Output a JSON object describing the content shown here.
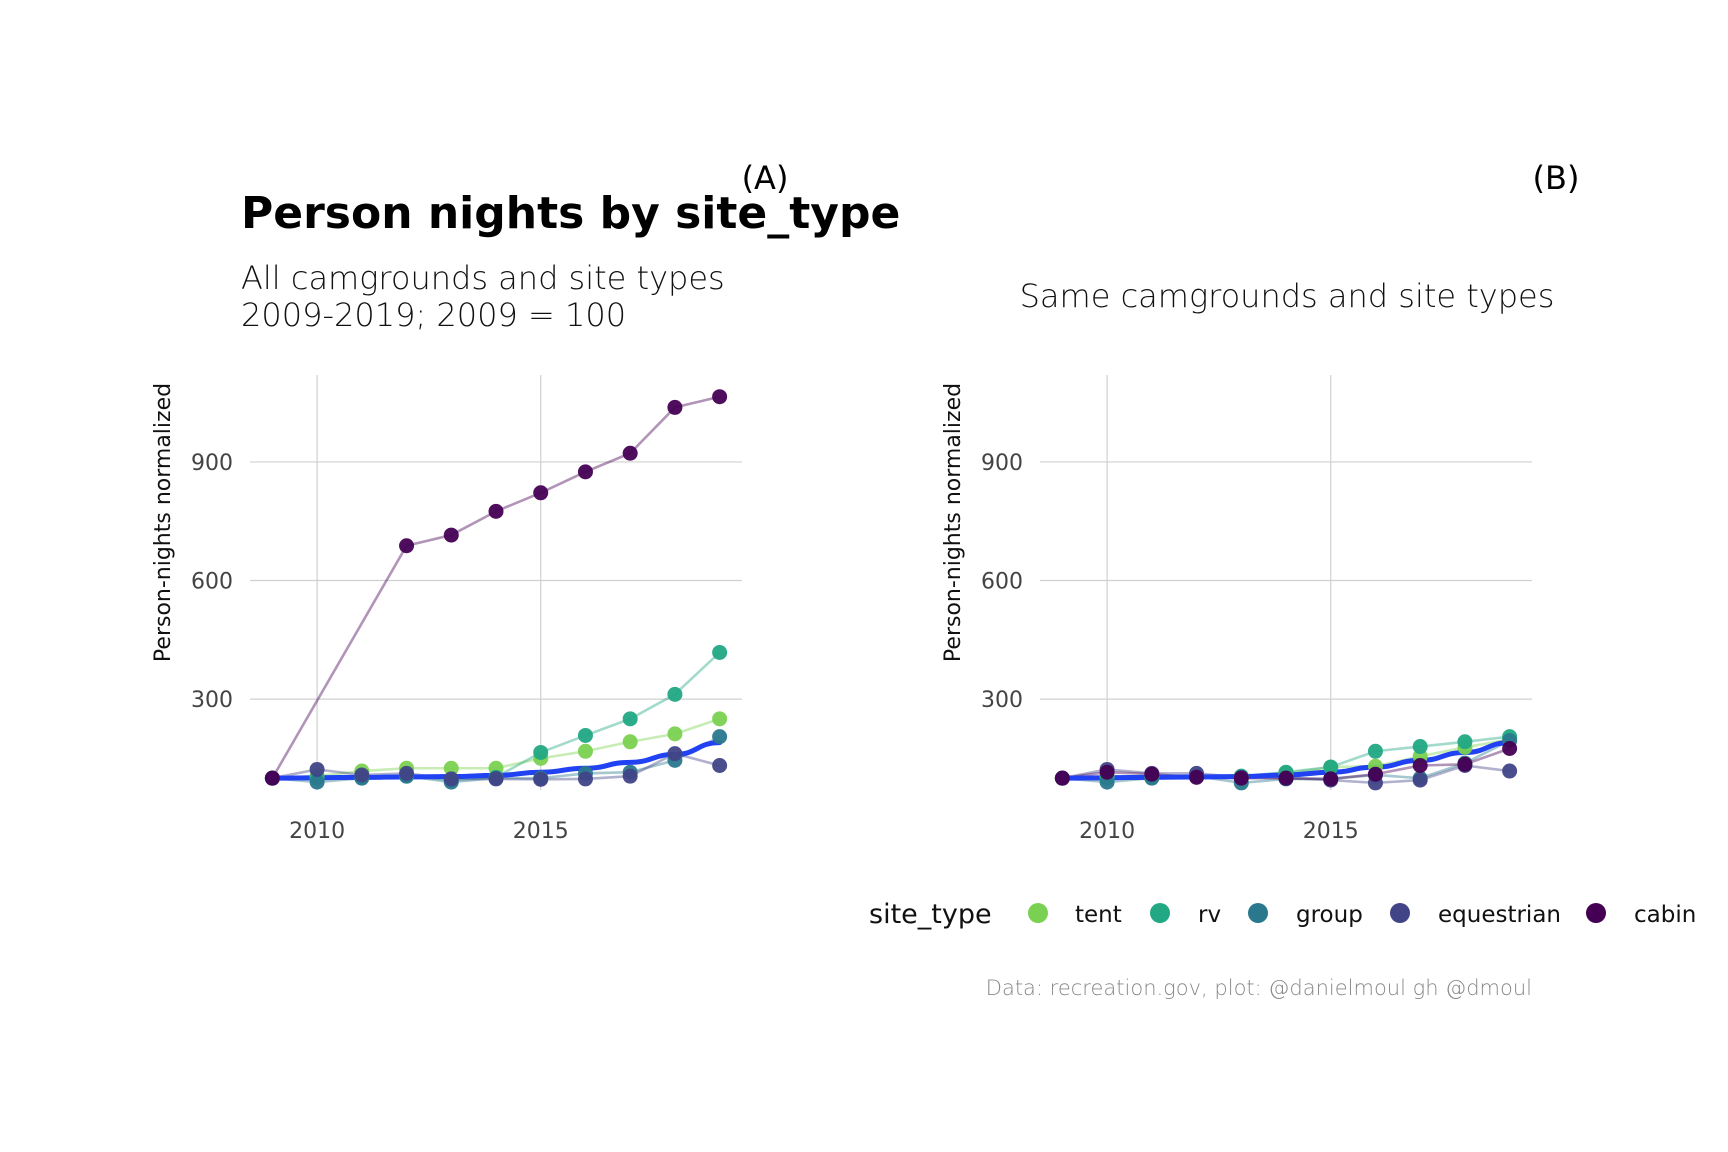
{
  "header": {
    "title": "Person nights by site_type",
    "subtitle_line1": "All camgrounds and site types",
    "subtitle_line2": "2009-2019; 2009 = 100"
  },
  "legend": {
    "title": "site_type",
    "items": [
      {
        "label": "tent",
        "color": "#7ad151"
      },
      {
        "label": "rv",
        "color": "#22a884"
      },
      {
        "label": "group",
        "color": "#2a788e"
      },
      {
        "label": "equestrian",
        "color": "#414487"
      },
      {
        "label": "cabin",
        "color": "#440154"
      }
    ]
  },
  "caption": "Data: recreation.gov, plot: @danielmoul gh @dmoul",
  "trend_color": "#2142f2",
  "chart_data": [
    {
      "type": "line",
      "tag": "(A)",
      "subtitle": "",
      "xlabel": "",
      "ylabel": "Person-nights normalized",
      "xlim": [
        2008.5,
        2019.5
      ],
      "ylim": [
        70,
        1120
      ],
      "xticks": [
        2010,
        2015
      ],
      "yticks": [
        300,
        600,
        900
      ],
      "grid": true,
      "x": [
        2009,
        2010,
        2011,
        2012,
        2013,
        2014,
        2015,
        2016,
        2017,
        2018,
        2019
      ],
      "series": [
        {
          "name": "tent",
          "color": "#7ad151",
          "values": [
            100,
            105,
            118,
            125,
            125,
            125,
            150,
            168,
            192,
            212,
            250
          ]
        },
        {
          "name": "rv",
          "color": "#22a884",
          "values": [
            100,
            100,
            102,
            105,
            95,
            102,
            165,
            208,
            250,
            312,
            418
          ]
        },
        {
          "name": "group",
          "color": "#2a788e",
          "values": [
            100,
            90,
            100,
            105,
            90,
            100,
            100,
            112,
            115,
            145,
            205
          ]
        },
        {
          "name": "equestrian",
          "color": "#414487",
          "values": [
            100,
            122,
            108,
            112,
            98,
            98,
            97,
            98,
            105,
            162,
            132
          ]
        },
        {
          "name": "cabin",
          "color": "#440154",
          "values": [
            100,
            null,
            null,
            688,
            715,
            775,
            822,
            875,
            922,
            1038,
            1065
          ]
        }
      ],
      "trend": [
        100,
        101,
        102,
        103,
        104,
        107,
        115,
        125,
        140,
        160,
        190
      ]
    },
    {
      "type": "line",
      "tag": "(B)",
      "subtitle": "Same camgrounds and site types",
      "xlabel": "",
      "ylabel": "Person-nights normalized",
      "xlim": [
        2008.5,
        2019.5
      ],
      "ylim": [
        70,
        1120
      ],
      "xticks": [
        2010,
        2015
      ],
      "yticks": [
        300,
        600,
        900
      ],
      "grid": true,
      "x": [
        2009,
        2010,
        2011,
        2012,
        2013,
        2014,
        2015,
        2016,
        2017,
        2018,
        2019
      ],
      "series": [
        {
          "name": "tent",
          "color": "#7ad151",
          "values": [
            100,
            105,
            102,
            105,
            100,
            112,
            128,
            130,
            155,
            178,
            198
          ]
        },
        {
          "name": "rv",
          "color": "#22a884",
          "values": [
            100,
            100,
            102,
            105,
            105,
            115,
            128,
            168,
            180,
            192,
            205
          ]
        },
        {
          "name": "group",
          "color": "#2a788e",
          "values": [
            100,
            90,
            100,
            105,
            88,
            98,
            98,
            108,
            100,
            138,
            195
          ]
        },
        {
          "name": "equestrian",
          "color": "#414487",
          "values": [
            100,
            122,
            112,
            112,
            102,
            100,
            95,
            88,
            95,
            132,
            118
          ]
        },
        {
          "name": "cabin",
          "color": "#440154",
          "values": [
            100,
            115,
            110,
            102,
            100,
            100,
            98,
            110,
            132,
            135,
            175
          ]
        }
      ],
      "trend": [
        100,
        101,
        102,
        103,
        104,
        108,
        115,
        128,
        145,
        165,
        190
      ]
    }
  ]
}
